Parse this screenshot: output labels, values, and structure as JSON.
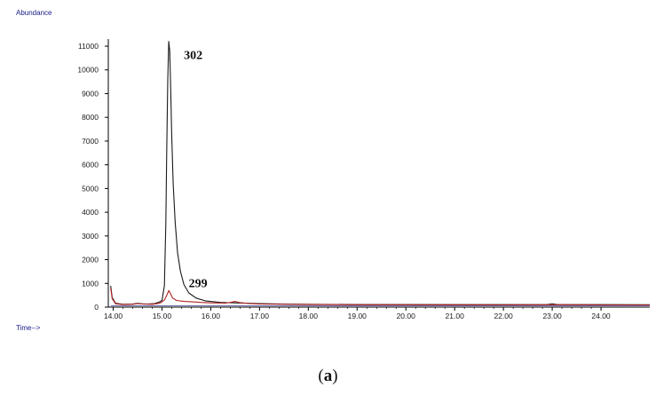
{
  "chart_data": {
    "type": "line",
    "xlabel": "Time-->",
    "ylabel": "Abundance",
    "xlim": [
      13.9,
      25.0
    ],
    "ylim": [
      0,
      11300
    ],
    "x_ticks": [
      "14.00",
      "15.00",
      "16.00",
      "17.00",
      "18.00",
      "19.00",
      "20.00",
      "21.00",
      "22.00",
      "23.00",
      "24.00"
    ],
    "y_ticks": [
      "0",
      "1000",
      "2000",
      "3000",
      "4000",
      "5000",
      "6000",
      "7000",
      "8000",
      "9000",
      "10000",
      "11000"
    ],
    "grid": false,
    "colors": {
      "axis": "#000000",
      "series_302": "#1a1a1a",
      "series_299": "#b22222",
      "baseline": "#3a3a8c"
    },
    "annotations": [
      {
        "text": "302",
        "x": 15.45,
        "y": 10450
      },
      {
        "text": "299",
        "x": 15.55,
        "y": 850
      }
    ],
    "series": [
      {
        "name": "302",
        "color": "#1a1a1a",
        "points": [
          [
            13.95,
            900
          ],
          [
            13.98,
            400
          ],
          [
            14.05,
            160
          ],
          [
            14.2,
            120
          ],
          [
            14.4,
            130
          ],
          [
            14.5,
            160
          ],
          [
            14.6,
            140
          ],
          [
            14.7,
            130
          ],
          [
            14.85,
            150
          ],
          [
            14.95,
            220
          ],
          [
            15.0,
            280
          ],
          [
            15.05,
            900
          ],
          [
            15.08,
            3500
          ],
          [
            15.1,
            6800
          ],
          [
            15.12,
            9600
          ],
          [
            15.14,
            11200
          ],
          [
            15.16,
            10800
          ],
          [
            15.18,
            9200
          ],
          [
            15.2,
            7300
          ],
          [
            15.23,
            5200
          ],
          [
            15.27,
            3600
          ],
          [
            15.32,
            2300
          ],
          [
            15.38,
            1500
          ],
          [
            15.45,
            950
          ],
          [
            15.55,
            600
          ],
          [
            15.7,
            380
          ],
          [
            15.9,
            260
          ],
          [
            16.2,
            200
          ],
          [
            16.5,
            180
          ],
          [
            17.0,
            150
          ],
          [
            17.5,
            130
          ],
          [
            18.0,
            120
          ],
          [
            19.0,
            110
          ],
          [
            20.0,
            110
          ],
          [
            21.0,
            105
          ],
          [
            22.0,
            105
          ],
          [
            22.9,
            110
          ],
          [
            23.0,
            140
          ],
          [
            23.1,
            110
          ],
          [
            24.0,
            105
          ],
          [
            25.0,
            100
          ]
        ]
      },
      {
        "name": "299",
        "color": "#b22222",
        "points": [
          [
            13.95,
            800
          ],
          [
            13.98,
            350
          ],
          [
            14.05,
            140
          ],
          [
            14.2,
            110
          ],
          [
            14.4,
            120
          ],
          [
            14.5,
            150
          ],
          [
            14.6,
            130
          ],
          [
            14.8,
            120
          ],
          [
            14.95,
            160
          ],
          [
            15.0,
            220
          ],
          [
            15.05,
            300
          ],
          [
            15.1,
            500
          ],
          [
            15.14,
            700
          ],
          [
            15.18,
            550
          ],
          [
            15.22,
            380
          ],
          [
            15.3,
            280
          ],
          [
            15.45,
            240
          ],
          [
            15.6,
            230
          ],
          [
            15.8,
            200
          ],
          [
            16.0,
            180
          ],
          [
            16.3,
            170
          ],
          [
            16.4,
            200
          ],
          [
            16.5,
            240
          ],
          [
            16.6,
            190
          ],
          [
            16.8,
            150
          ],
          [
            17.0,
            130
          ],
          [
            18.0,
            110
          ],
          [
            19.0,
            100
          ],
          [
            20.0,
            100
          ],
          [
            22.0,
            95
          ],
          [
            23.0,
            100
          ],
          [
            24.0,
            95
          ],
          [
            25.0,
            90
          ]
        ]
      }
    ]
  },
  "caption": {
    "open": "(",
    "letter": "a",
    "close": ")"
  }
}
